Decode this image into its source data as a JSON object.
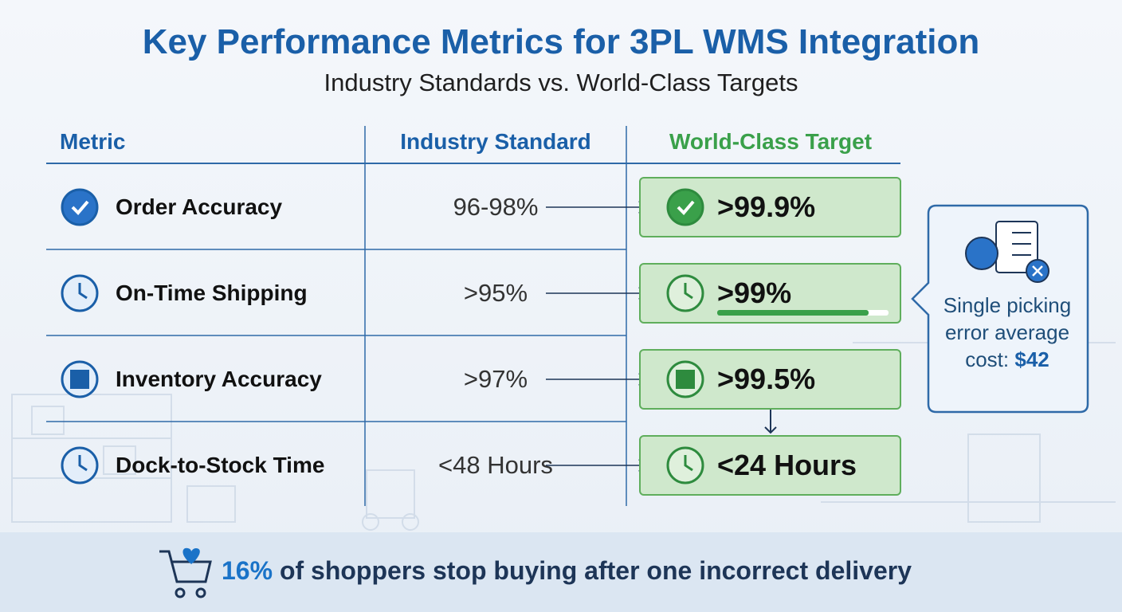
{
  "header": {
    "title": "Key Performance Metrics for 3PL WMS Integration",
    "subtitle": "Industry Standards vs. World-Class Targets"
  },
  "table": {
    "columns": [
      "Metric",
      "Industry Standard",
      "World-Class Target"
    ],
    "rows": [
      [
        "Order Accuracy",
        "96-98%",
        ">99.9%"
      ],
      [
        "On-Time Shipping",
        ">95%",
        ">99%"
      ],
      [
        "Inventory Accuracy",
        ">97%",
        ">99.5%"
      ],
      [
        "Dock-to-Stock Time",
        "<48 Hours",
        "<24 Hours"
      ]
    ]
  },
  "callout": {
    "text": "Single picking error average cost:",
    "value": "$42"
  },
  "footer": {
    "highlight": "16%",
    "text": "of shoppers stop buying after one incorrect delivery"
  }
}
